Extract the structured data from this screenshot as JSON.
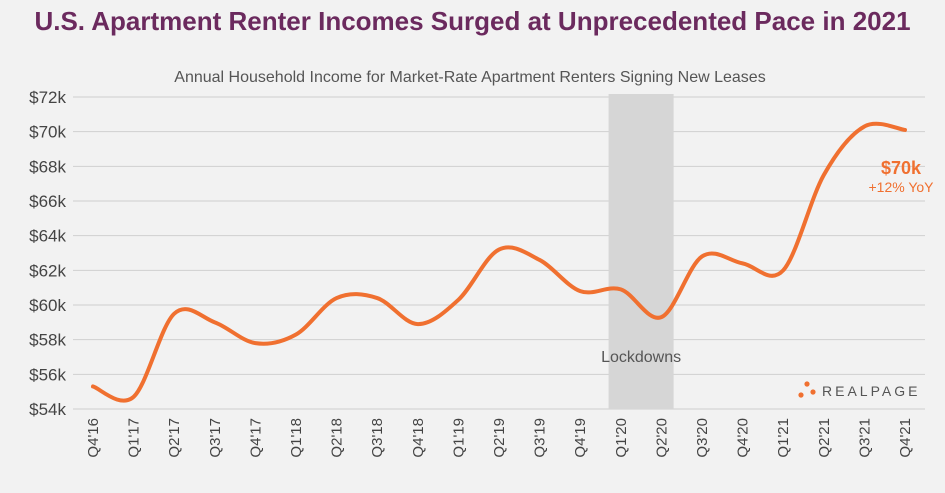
{
  "header": {
    "title": "U.S. Apartment Renter Incomes Surged at Unprecedented Pace in 2021"
  },
  "brand": {
    "name": "REALPAGE"
  },
  "colors": {
    "line": "#f07030",
    "title": "#6b2a5e",
    "shade": "#d6d6d6",
    "grid": "#cfcfcf"
  },
  "chart_data": {
    "type": "line",
    "title": "Annual Household Income for Market-Rate Apartment Renters Signing New Leases",
    "xlabel": "",
    "ylabel": "",
    "ylim": [
      54000,
      72000
    ],
    "yticks": [
      54000,
      56000,
      58000,
      60000,
      62000,
      64000,
      66000,
      68000,
      70000,
      72000
    ],
    "ytick_labels": [
      "$54k",
      "$56k",
      "$58k",
      "$60k",
      "$62k",
      "$64k",
      "$66k",
      "$68k",
      "$70k",
      "$72k"
    ],
    "categories": [
      "Q4'16",
      "Q1'17",
      "Q2'17",
      "Q3'17",
      "Q4'17",
      "Q1'18",
      "Q2'18",
      "Q3'18",
      "Q4'18",
      "Q1'19",
      "Q2'19",
      "Q3'19",
      "Q4'19",
      "Q1'20",
      "Q2'20",
      "Q3'20",
      "Q4'20",
      "Q1'21",
      "Q2'21",
      "Q3'21",
      "Q4'21"
    ],
    "series": [
      {
        "name": "Annual Household Income",
        "values": [
          55300,
          54700,
          59500,
          59000,
          57800,
          58300,
          60400,
          60400,
          58900,
          60300,
          63200,
          62600,
          60800,
          60900,
          59300,
          62800,
          62400,
          62000,
          67500,
          70300,
          70100
        ]
      }
    ],
    "shaded_region": {
      "label": "Lockdowns",
      "from": "Q1'20",
      "to": "Q2'20"
    },
    "annotation": {
      "value_label": "$70k",
      "change_label": "+12% YoY"
    },
    "grid": true
  }
}
